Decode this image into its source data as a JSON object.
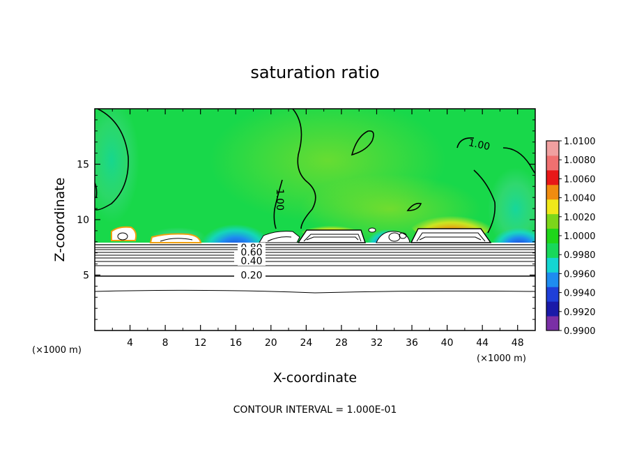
{
  "chart_data": {
    "type": "heatmap",
    "title": "saturation ratio",
    "xlabel": "X-coordinate",
    "ylabel": "Z-coordinate",
    "x_unit": "(×1000 m)",
    "y_unit": "(×1000 m)",
    "xlim": [
      0,
      50
    ],
    "ylim": [
      0,
      20
    ],
    "x_ticks": [
      4,
      8,
      12,
      16,
      20,
      24,
      28,
      32,
      36,
      40,
      44,
      48
    ],
    "x_tick_labels": [
      "4",
      "8",
      "12",
      "16",
      "20",
      "24",
      "28",
      "32",
      "36",
      "40",
      "44",
      "48"
    ],
    "y_ticks": [
      5,
      10,
      15
    ],
    "y_tick_labels": [
      "5",
      "10",
      "15"
    ],
    "colorbar": {
      "levels": [
        0.99,
        0.992,
        0.994,
        0.996,
        0.998,
        1.0,
        1.002,
        1.004,
        1.006,
        1.008,
        1.01
      ],
      "labels": [
        "0.9900",
        "0.9920",
        "0.9940",
        "0.9960",
        "0.9980",
        "1.0000",
        "1.0020",
        "1.0040",
        "1.0060",
        "1.0080",
        "1.0100"
      ],
      "colors": [
        "#7a2fa6",
        "#1a1aa8",
        "#1f3fd8",
        "#1e8cf0",
        "#14d6d2",
        "#18d85a",
        "#1fd61a",
        "#7cd61a",
        "#f0e81a",
        "#f08c10",
        "#e81818",
        "#f07070",
        "#f0a0a0"
      ]
    },
    "contour_labels": [
      {
        "text": "1.00",
        "x": 43.6,
        "z": 16.6,
        "angle": 12
      },
      {
        "text": "1.00",
        "x": 20.8,
        "z": 11.8,
        "angle": 90
      },
      {
        "text": "0.80",
        "x": 17.8,
        "z": 7.3,
        "angle": 0
      },
      {
        "text": "0.60",
        "x": 17.8,
        "z": 6.9,
        "angle": 0
      },
      {
        "text": "0.40",
        "x": 17.8,
        "z": 6.1,
        "angle": 0
      },
      {
        "text": "0.20",
        "x": 17.8,
        "z": 4.8,
        "angle": 0
      }
    ],
    "contour_interval_text": "CONTOUR INTERVAL = 1.000E-01"
  }
}
